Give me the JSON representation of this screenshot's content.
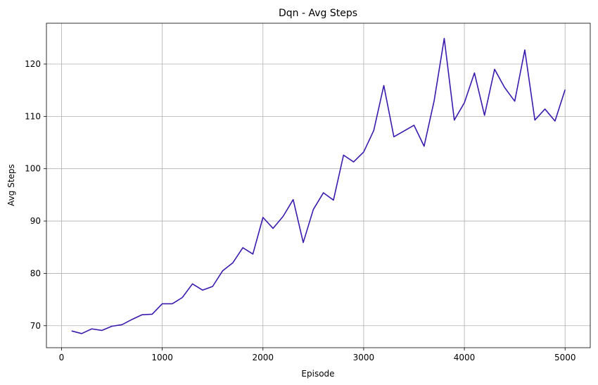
{
  "chart_data": {
    "type": "line",
    "title": "Dqn - Avg Steps",
    "xlabel": "Episode",
    "ylabel": "Avg Steps",
    "xlim": [
      -150,
      5250
    ],
    "ylim": [
      65.8,
      127.8
    ],
    "xticks": [
      0,
      1000,
      2000,
      3000,
      4000,
      5000
    ],
    "yticks": [
      70,
      80,
      90,
      100,
      110,
      120
    ],
    "grid": true,
    "line_color": "#3a1aad",
    "series": [
      {
        "x": [
          100,
          200,
          300,
          400,
          500,
          600,
          700,
          800,
          900,
          1000,
          1100,
          1200,
          1300,
          1400,
          1500,
          1600,
          1700,
          1800,
          1900,
          2000,
          2100,
          2200,
          2300,
          2400,
          2500,
          2600,
          2700,
          2800,
          2900,
          3000,
          3100,
          3200,
          3300,
          3400,
          3500,
          3600,
          3700,
          3800,
          3900,
          4000,
          4100,
          4200,
          4300,
          4400,
          4500,
          4600,
          4700,
          4800,
          4900,
          5000
        ],
        "values": [
          69.0,
          68.5,
          69.4,
          69.1,
          69.9,
          70.2,
          71.2,
          72.1,
          72.2,
          74.2,
          74.2,
          75.4,
          78.0,
          76.8,
          77.5,
          80.5,
          82.0,
          84.9,
          83.7,
          90.7,
          88.6,
          90.9,
          94.1,
          85.9,
          92.2,
          95.4,
          94.0,
          102.6,
          101.3,
          103.2,
          107.3,
          115.9,
          106.1,
          107.2,
          108.3,
          104.3,
          113.0,
          124.9,
          109.3,
          112.6,
          118.3,
          110.2,
          119.0,
          115.5,
          112.9,
          122.7,
          109.3,
          111.4,
          109.1,
          115.1
        ]
      }
    ]
  }
}
